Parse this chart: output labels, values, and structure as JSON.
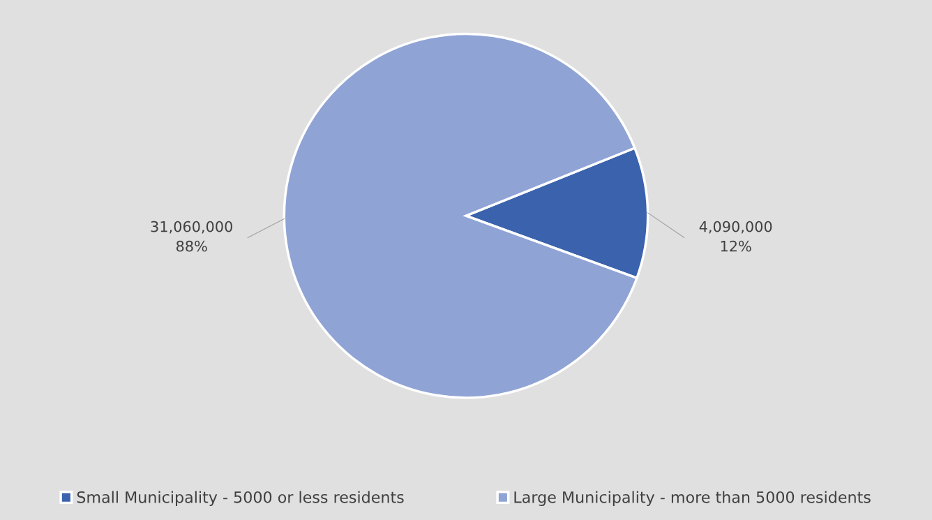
{
  "chart_data": {
    "type": "pie",
    "categories": [
      "Small Municipality - 5000 or less residents",
      "Large Municipality - more than 5000 residents"
    ],
    "values": [
      4090000,
      31060000
    ],
    "colors": [
      "#3a62ad",
      "#8fa3d5"
    ],
    "value_labels": [
      "4,090,000\n12%",
      "31,060,000\n88%"
    ],
    "legend": "bottom"
  }
}
